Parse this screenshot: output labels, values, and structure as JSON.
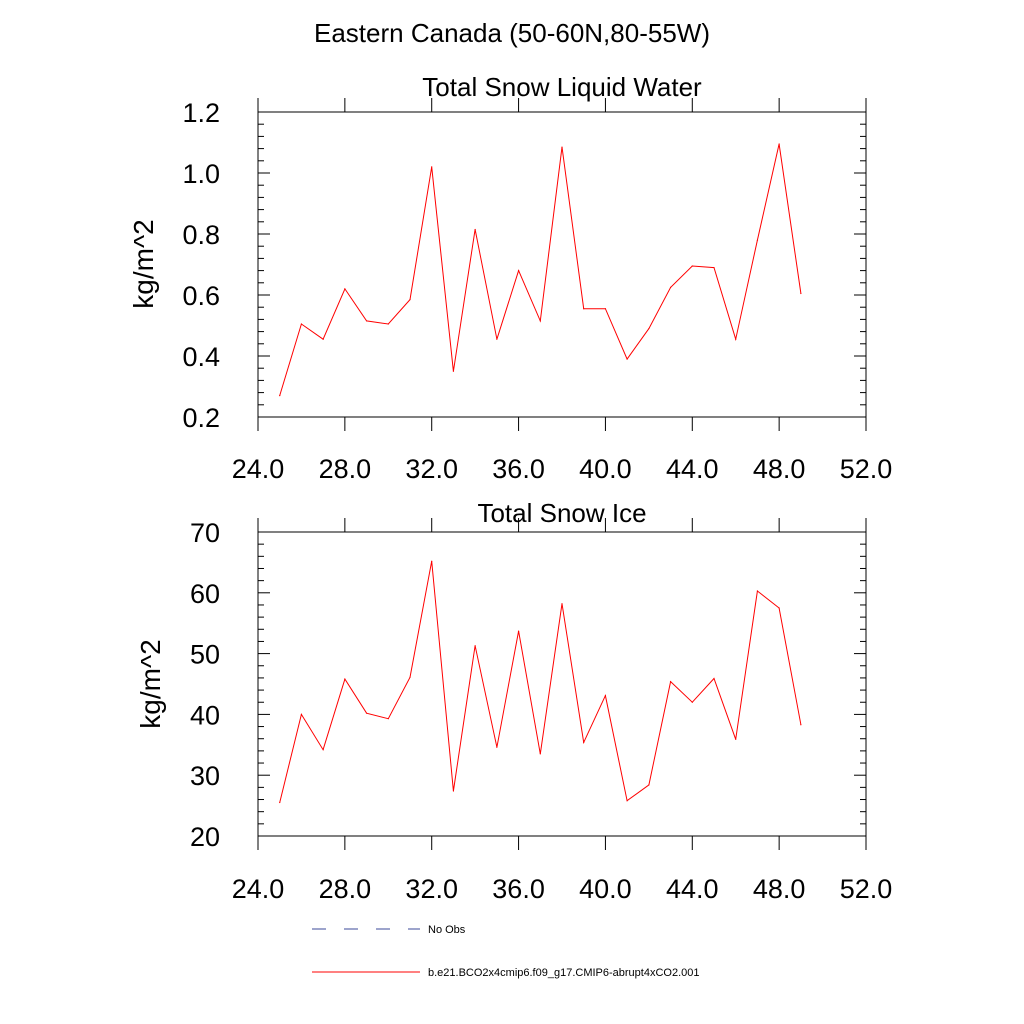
{
  "figure": {
    "title": "Eastern Canada (50-60N,80-55W)"
  },
  "legend": {
    "entries": [
      {
        "label": "No Obs",
        "color": "#3b4a9a",
        "style": "dashed"
      },
      {
        "label": "b.e21.BCO2x4cmip6.f09_g17.CMIP6-abrupt4xCO2.001",
        "color": "#ff0000",
        "style": "solid"
      }
    ]
  },
  "chart_data": [
    {
      "type": "line",
      "title": "Total Snow Liquid Water",
      "ylabel": "kg/m^2",
      "xlabel": "",
      "xlim": [
        24,
        52
      ],
      "ylim": [
        0.2,
        1.2
      ],
      "xticks": [
        24,
        28,
        32,
        36,
        40,
        44,
        48,
        52
      ],
      "xtick_labels": [
        "24.0",
        "28.0",
        "32.0",
        "36.0",
        "40.0",
        "44.0",
        "48.0",
        "52.0"
      ],
      "yticks": [
        0.2,
        0.4,
        0.6,
        0.8,
        1.0,
        1.2
      ],
      "ytick_labels": [
        "0.2",
        "0.4",
        "0.6",
        "0.8",
        "1.0",
        "1.2"
      ],
      "grid": false,
      "series": [
        {
          "name": "b.e21.BCO2x4cmip6.f09_g17.CMIP6-abrupt4xCO2.001",
          "color": "#ff0000",
          "x": [
            25,
            26,
            27,
            28,
            29,
            30,
            31,
            32,
            33,
            34,
            35,
            36,
            37,
            38,
            39,
            40,
            41,
            42,
            43,
            44,
            45,
            46,
            47,
            48,
            49
          ],
          "y": [
            0.27,
            0.505,
            0.455,
            0.62,
            0.515,
            0.505,
            0.585,
            1.02,
            0.35,
            0.815,
            0.455,
            0.68,
            0.515,
            1.085,
            0.555,
            0.555,
            0.39,
            0.49,
            0.625,
            0.695,
            0.69,
            0.455,
            0.78,
            1.095,
            0.605
          ]
        }
      ]
    },
    {
      "type": "line",
      "title": "Total Snow Ice",
      "ylabel": "kg/m^2",
      "xlabel": "",
      "xlim": [
        24,
        52
      ],
      "ylim": [
        20,
        70
      ],
      "xticks": [
        24,
        28,
        32,
        36,
        40,
        44,
        48,
        52
      ],
      "xtick_labels": [
        "24.0",
        "28.0",
        "32.0",
        "36.0",
        "40.0",
        "44.0",
        "48.0",
        "52.0"
      ],
      "yticks": [
        20,
        30,
        40,
        50,
        60,
        70
      ],
      "ytick_labels": [
        "20",
        "30",
        "40",
        "50",
        "60",
        "70"
      ],
      "grid": false,
      "series": [
        {
          "name": "b.e21.BCO2x4cmip6.f09_g17.CMIP6-abrupt4xCO2.001",
          "color": "#ff0000",
          "x": [
            25,
            26,
            27,
            28,
            29,
            30,
            31,
            32,
            33,
            34,
            35,
            36,
            37,
            38,
            39,
            40,
            41,
            42,
            43,
            44,
            45,
            46,
            47,
            48,
            49
          ],
          "y": [
            25.5,
            40.0,
            34.2,
            45.8,
            40.2,
            39.3,
            46.1,
            65.2,
            27.4,
            51.3,
            34.6,
            53.7,
            33.5,
            58.2,
            35.4,
            43.1,
            25.8,
            28.4,
            45.4,
            42.0,
            45.9,
            35.9,
            60.3,
            57.5,
            38.3
          ]
        }
      ]
    }
  ]
}
